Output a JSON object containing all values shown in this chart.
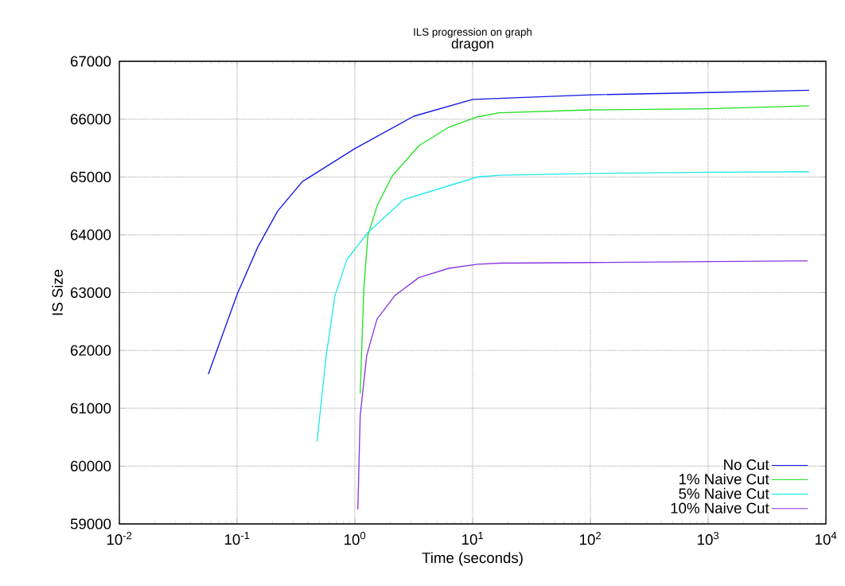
{
  "chart_data": {
    "type": "line",
    "title": "ILS progression on graph",
    "subtitle": "dragon",
    "xlabel": "Time (seconds)",
    "ylabel": "IS Size",
    "log": "x",
    "grid": true,
    "legend": "bottom right",
    "line_style": "solid",
    "xlim": [
      0.01,
      10000
    ],
    "ylim": [
      59000,
      67000
    ],
    "xticks": [
      {
        "value": 0.01,
        "label": "10$^{-2}$"
      },
      {
        "value": 0.1,
        "label": "10$^{-1}$"
      },
      {
        "value": 1,
        "label": "10$^{0}$"
      },
      {
        "value": 10,
        "label": "10$^{1}$"
      },
      {
        "value": 100,
        "label": "10$^{2}$"
      },
      {
        "value": 1000,
        "label": "10$^{3}$"
      },
      {
        "value": 10000,
        "label": "10$^{4}$"
      }
    ],
    "yticks": [
      59000,
      60000,
      61000,
      62000,
      63000,
      64000,
      65000,
      66000,
      67000
    ],
    "series": [
      {
        "name": "No Cut",
        "color": "#1515e6",
        "x": [
          0.057,
          0.0755,
          0.1,
          0.15,
          0.221,
          0.358,
          1,
          3.16,
          10,
          100,
          1000,
          7200
        ],
        "values": [
          61590,
          62280,
          62970,
          63790,
          64410,
          64920,
          65490,
          66050,
          66340,
          66420,
          66460,
          66500
        ]
      },
      {
        "name": "1% Naive Cut",
        "color": "#22e022",
        "x": [
          1.11,
          1.19,
          1.29,
          1.55,
          2.08,
          3.5,
          6.27,
          11,
          17,
          100,
          1000,
          7200
        ],
        "values": [
          61250,
          63050,
          63990,
          64510,
          65020,
          65540,
          65860,
          66040,
          66110,
          66160,
          66180,
          66230
        ]
      },
      {
        "name": "5% Naive Cut",
        "color": "#22e8e8",
        "x": [
          0.477,
          0.571,
          0.678,
          0.855,
          1.29,
          2.61,
          11,
          17,
          100,
          1000,
          7200
        ],
        "values": [
          60420,
          61910,
          62950,
          63570,
          64040,
          64610,
          65000,
          65030,
          65060,
          65080,
          65090
        ]
      },
      {
        "name": "10% Naive Cut",
        "color": "#8a35e0",
        "x": [
          1.06,
          1.11,
          1.26,
          1.54,
          2.19,
          3.5,
          6.27,
          11,
          17,
          100,
          7000
        ],
        "values": [
          59250,
          60870,
          61910,
          62540,
          62950,
          63260,
          63420,
          63490,
          63510,
          63520,
          63550
        ]
      }
    ]
  }
}
